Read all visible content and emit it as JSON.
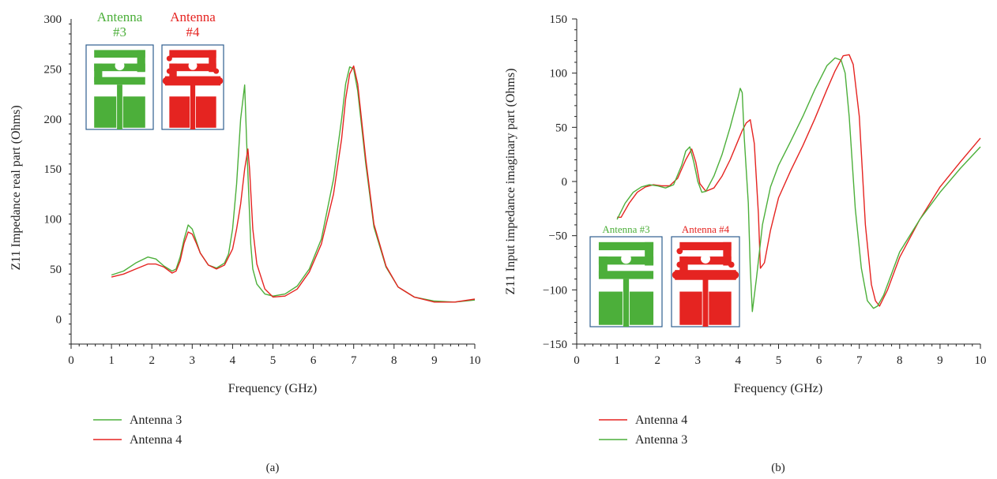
{
  "colors": {
    "antenna3": "#4caf3a",
    "antenna4": "#e52421",
    "inset_frame": "#2f5f8f",
    "axis": "#222222"
  },
  "chart_data": [
    {
      "id": "a",
      "type": "line",
      "caption": "(a)",
      "xlabel": "Frequency (GHz)",
      "ylabel": "Z11 Impedance real part (Ohms)",
      "xlim": [
        0,
        10
      ],
      "ylim": [
        -25,
        300
      ],
      "xticks": [
        0,
        1,
        2,
        3,
        4,
        5,
        6,
        7,
        8,
        9,
        10
      ],
      "yticks": [
        0,
        50,
        100,
        150,
        200,
        250,
        300
      ],
      "grid": false,
      "legend_placement": "bottom-left",
      "legend_order": [
        "Antenna 3",
        "Antenna 4"
      ],
      "insets": [
        {
          "title_line1": "Antenna",
          "title_line2": "#3",
          "series": "Antenna 3",
          "variant": "antenna3"
        },
        {
          "title_line1": "Antenna",
          "title_line2": "#4",
          "series": "Antenna 4",
          "variant": "antenna4"
        }
      ],
      "series": [
        {
          "name": "Antenna 3",
          "color_key": "antenna3",
          "x": [
            1.0,
            1.3,
            1.6,
            1.9,
            2.1,
            2.3,
            2.5,
            2.6,
            2.7,
            2.8,
            2.9,
            3.0,
            3.1,
            3.2,
            3.4,
            3.6,
            3.8,
            3.9,
            4.0,
            4.1,
            4.2,
            4.3,
            4.35,
            4.45,
            4.5,
            4.6,
            4.8,
            5.0,
            5.3,
            5.6,
            5.9,
            6.2,
            6.5,
            6.7,
            6.8,
            6.9,
            7.0,
            7.1,
            7.3,
            7.5,
            7.8,
            8.1,
            8.5,
            9.0,
            9.5,
            10.0
          ],
          "y": [
            44,
            48,
            56,
            62,
            60,
            53,
            48,
            50,
            62,
            80,
            94,
            90,
            78,
            66,
            54,
            51,
            56,
            65,
            90,
            135,
            200,
            234,
            175,
            75,
            50,
            35,
            25,
            23,
            25,
            33,
            50,
            80,
            140,
            200,
            235,
            252,
            250,
            228,
            155,
            92,
            52,
            32,
            22,
            18,
            17,
            19
          ]
        },
        {
          "name": "Antenna 4",
          "color_key": "antenna4",
          "x": [
            1.0,
            1.3,
            1.6,
            1.9,
            2.1,
            2.3,
            2.5,
            2.6,
            2.7,
            2.8,
            2.9,
            3.0,
            3.1,
            3.2,
            3.4,
            3.6,
            3.8,
            4.0,
            4.1,
            4.2,
            4.3,
            4.38,
            4.42,
            4.5,
            4.6,
            4.8,
            5.0,
            5.3,
            5.6,
            5.9,
            6.2,
            6.5,
            6.7,
            6.8,
            6.9,
            7.0,
            7.1,
            7.3,
            7.5,
            7.8,
            8.1,
            8.5,
            9.0,
            9.5,
            10.0
          ],
          "y": [
            42,
            45,
            50,
            55,
            55,
            52,
            46,
            48,
            58,
            76,
            87,
            85,
            76,
            66,
            54,
            50,
            54,
            70,
            90,
            115,
            150,
            170,
            150,
            90,
            55,
            30,
            22,
            23,
            30,
            47,
            75,
            125,
            180,
            220,
            245,
            253,
            235,
            160,
            95,
            53,
            32,
            22,
            17,
            17,
            20
          ]
        }
      ]
    },
    {
      "id": "b",
      "type": "line",
      "caption": "(b)",
      "xlabel": "Frequency (GHz)",
      "ylabel": "Z11 Input impedance imaginary part (Ohms)",
      "xlim": [
        0,
        10
      ],
      "ylim": [
        -150,
        150
      ],
      "xticks": [
        0,
        1,
        2,
        3,
        4,
        5,
        6,
        7,
        8,
        9,
        10
      ],
      "yticks": [
        -150,
        -100,
        -50,
        0,
        50,
        100,
        150
      ],
      "ytick_labels": [
        "−150",
        "−100",
        "−50",
        "0",
        "50",
        "100",
        "150"
      ],
      "grid": false,
      "legend_placement": "bottom-left",
      "legend_order": [
        "Antenna 4",
        "Antenna 3"
      ],
      "insets": [
        {
          "title": "Antenna #3",
          "series": "Antenna 3",
          "variant": "antenna3"
        },
        {
          "title": "Antenna #4",
          "series": "Antenna 4",
          "variant": "antenna4"
        }
      ],
      "series": [
        {
          "name": "Antenna 4",
          "color_key": "antenna4",
          "x": [
            1.0,
            1.1,
            1.3,
            1.5,
            1.7,
            1.9,
            2.1,
            2.3,
            2.5,
            2.7,
            2.85,
            2.95,
            3.05,
            3.2,
            3.4,
            3.6,
            3.8,
            4.0,
            4.1,
            4.2,
            4.3,
            4.4,
            4.5,
            4.55,
            4.65,
            4.8,
            5.0,
            5.3,
            5.6,
            5.9,
            6.2,
            6.4,
            6.6,
            6.75,
            6.85,
            7.0,
            7.15,
            7.3,
            7.4,
            7.5,
            7.7,
            8.0,
            8.5,
            9.0,
            9.5,
            10.0
          ],
          "y": [
            -33,
            -33,
            -20,
            -10,
            -5,
            -3,
            -4,
            -4,
            3,
            20,
            30,
            18,
            -2,
            -9,
            -6,
            5,
            20,
            38,
            47,
            54,
            57,
            35,
            -30,
            -80,
            -75,
            -45,
            -15,
            10,
            33,
            58,
            85,
            102,
            116,
            117,
            108,
            60,
            -40,
            -95,
            -110,
            -115,
            -100,
            -70,
            -35,
            -5,
            18,
            40
          ]
        },
        {
          "name": "Antenna 3",
          "color_key": "antenna3",
          "x": [
            1.0,
            1.2,
            1.4,
            1.6,
            1.8,
            2.0,
            2.2,
            2.4,
            2.6,
            2.7,
            2.8,
            2.9,
            3.0,
            3.1,
            3.2,
            3.4,
            3.6,
            3.8,
            4.0,
            4.05,
            4.1,
            4.15,
            4.25,
            4.3,
            4.35,
            4.45,
            4.6,
            4.8,
            5.0,
            5.3,
            5.6,
            5.9,
            6.2,
            6.4,
            6.55,
            6.65,
            6.75,
            6.9,
            7.05,
            7.2,
            7.35,
            7.45,
            7.6,
            7.8,
            8.0,
            8.5,
            9.0,
            9.5,
            10.0
          ],
          "y": [
            -35,
            -20,
            -10,
            -5,
            -3,
            -4,
            -6,
            -3,
            15,
            28,
            32,
            18,
            0,
            -10,
            -9,
            5,
            25,
            50,
            78,
            86,
            82,
            40,
            -20,
            -80,
            -120,
            -90,
            -40,
            -5,
            15,
            37,
            60,
            85,
            107,
            114,
            112,
            100,
            60,
            -25,
            -80,
            -110,
            -117,
            -115,
            -105,
            -85,
            -65,
            -35,
            -10,
            12,
            32
          ]
        }
      ]
    }
  ]
}
